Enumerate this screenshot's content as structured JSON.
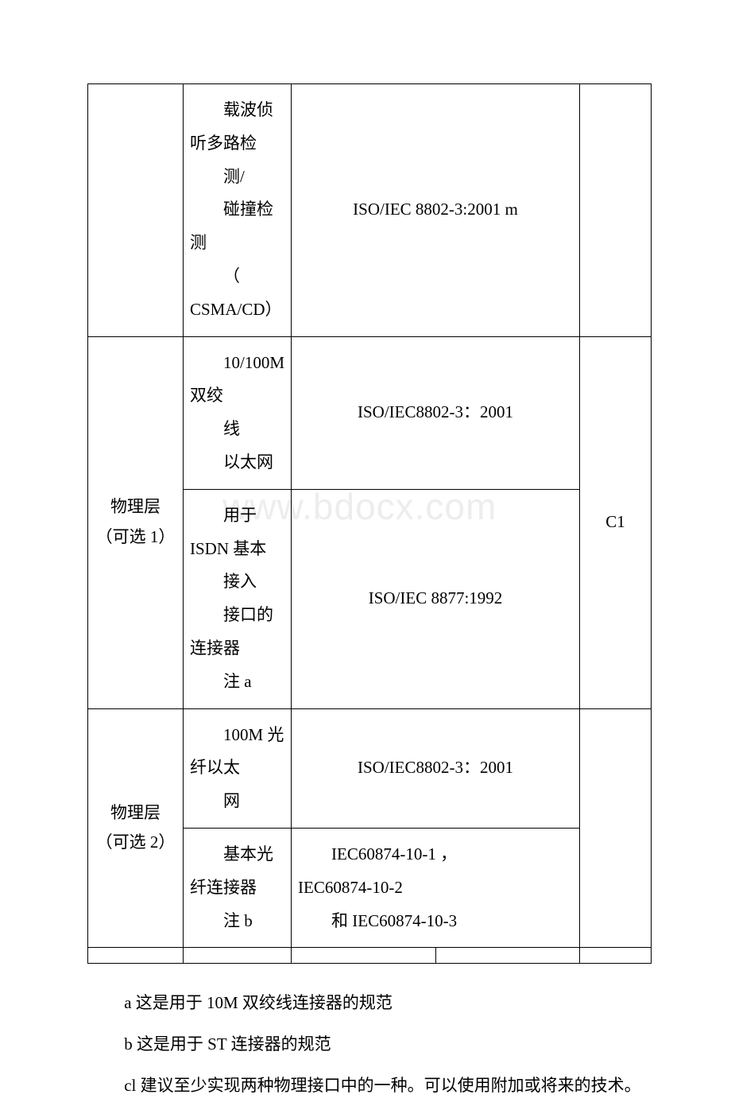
{
  "watermark": "www.bdocx.com",
  "table": {
    "rows": {
      "r1": {
        "c1": "",
        "c2_lines": [
          "载波侦",
          "听多路检",
          "测/",
          "碰撞检",
          "测",
          "（",
          "CSMA/CD）"
        ],
        "c3": "ISO/IEC 8802-3:2001 m",
        "c4": ""
      },
      "r2a": {
        "c1_line1": "物理层",
        "c1_line2": "（可选 1）",
        "c2_lines": [
          "10/100M",
          "双绞",
          "线",
          "以太网"
        ],
        "c3": "ISO/IEC8802-3：2001",
        "c4": "C1"
      },
      "r2b": {
        "c2_lines": [
          "用于",
          "ISDN 基本",
          "接入",
          "接口的",
          "连接器",
          "注 a"
        ],
        "c3": "ISO/IEC 8877:1992"
      },
      "r3a": {
        "c1_line1": "物理层",
        "c1_line2": "（可选 2）",
        "c2_lines": [
          "100M 光",
          "纤以太",
          "网"
        ],
        "c3": "ISO/IEC8802-3：2001",
        "c4": ""
      },
      "r3b": {
        "c2_lines": [
          "基本光",
          "纤连接器",
          "注 b"
        ],
        "c3_line1": "IEC60874-10-1 ，",
        "c3_line2": "IEC60874-10-2",
        "c3_line3": "和 IEC60874-10-3"
      }
    }
  },
  "notes": {
    "a": "a 这是用于 10M 双绞线连接器的规范",
    "b": "b 这是用于 ST 连接器的规范",
    "c": "cl 建议至少实现两种物理接口中的一种。可以使用附加或将来的技术。"
  }
}
